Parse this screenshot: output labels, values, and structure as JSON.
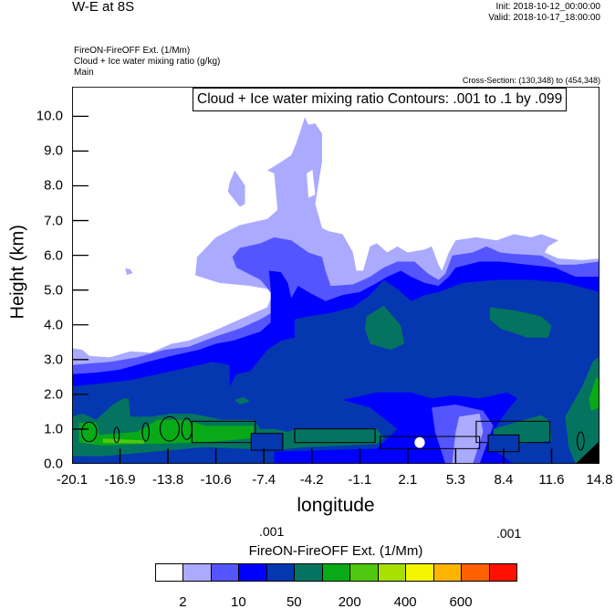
{
  "header": {
    "title": "W-E at 8S",
    "init": "Init: 2018-10-12_00:00:00",
    "valid": "Valid: 2018-10-17_18:00:00",
    "field1": "FireON-FireOFF Ext.   (1/Mm)",
    "field2": "Cloud + Ice water mixing ratio   (g/kg)",
    "field3": "Main",
    "cross_section": "Cross-Section: (130,348) to (454,348)"
  },
  "chart_data": {
    "type": "heatmap",
    "title": "W-E at 8S",
    "xlabel": "longitude",
    "ylabel": "Height (km)",
    "xlim": [
      -20.1,
      14.8
    ],
    "ylim": [
      0.0,
      10.85
    ],
    "x_ticks": [
      "-20.1",
      "-16.9",
      "-13.8",
      "-10.6",
      "-7.4",
      "-4.2",
      "-1.1",
      "2.1",
      "5.3",
      "8.4",
      "11.6",
      "14.8"
    ],
    "y_ticks": [
      "0.0",
      "1.0",
      "2.0",
      "3.0",
      "4.0",
      "5.0",
      "6.0",
      "7.0",
      "8.0",
      "9.0",
      "10.0"
    ],
    "y_tick_values": [
      0,
      1,
      2,
      3,
      4,
      5,
      6,
      7,
      8,
      9,
      10
    ],
    "contour_legend": "Cloud + Ice water mixing ratio Contours: .001 to .1 by .099",
    "contour_labels": [
      ".001",
      ".001"
    ],
    "colorbar": {
      "title": "FireON-FireOFF Ext.  (1/Mm)",
      "colors": [
        "#FFFFFF",
        "#AAAAFF",
        "#5555FF",
        "#0000FF",
        "#0437B0",
        "#047460",
        "#08AA18",
        "#50C810",
        "#A8E000",
        "#F5F500",
        "#FFB400",
        "#FF6000",
        "#FF1000"
      ],
      "labels": [
        "2",
        "10",
        "50",
        "200",
        "400",
        "600"
      ],
      "label_boundary_index": [
        1,
        3,
        5,
        7,
        9,
        11
      ]
    }
  }
}
